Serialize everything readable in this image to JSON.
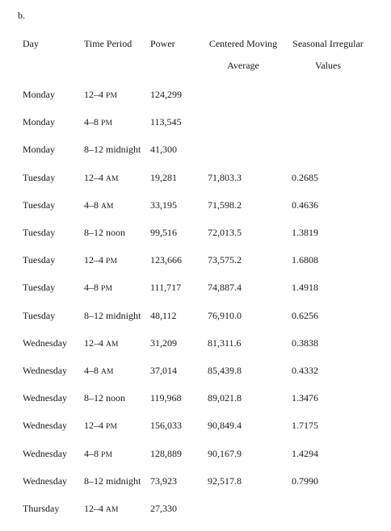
{
  "part_label": "b.",
  "headers": {
    "day": "Day",
    "time_period": "Time Period",
    "power": "Power",
    "cma_line1": "Centered Moving",
    "cma_line2": "Average",
    "siv_line1": "Seasonal Irregular",
    "siv_line2": "Values"
  },
  "rows": [
    {
      "day": "Monday",
      "time": "12–4",
      "ampm": "PM",
      "power": "124,299",
      "cma": "",
      "siv": ""
    },
    {
      "day": "Monday",
      "time": "4–8",
      "ampm": "PM",
      "power": "113,545",
      "cma": "",
      "siv": ""
    },
    {
      "day": "Monday",
      "time": "8–12 midnight",
      "ampm": "",
      "power": "41,300",
      "cma": "",
      "siv": ""
    },
    {
      "day": "Tuesday",
      "time": "12–4",
      "ampm": "AM",
      "power": "19,281",
      "cma": "71,803.3",
      "siv": "0.2685"
    },
    {
      "day": "Tuesday",
      "time": "4–8",
      "ampm": "AM",
      "power": "33,195",
      "cma": "71,598.2",
      "siv": "0.4636"
    },
    {
      "day": "Tuesday",
      "time": "8–12 noon",
      "ampm": "",
      "power": "99,516",
      "cma": "72,013.5",
      "siv": "1.3819"
    },
    {
      "day": "Tuesday",
      "time": "12–4",
      "ampm": "PM",
      "power": "123,666",
      "cma": "73,575.2",
      "siv": "1.6808"
    },
    {
      "day": "Tuesday",
      "time": "4–8",
      "ampm": "PM",
      "power": "111,717",
      "cma": "74,887.4",
      "siv": "1.4918"
    },
    {
      "day": "Tuesday",
      "time": "8–12 midnight",
      "ampm": "",
      "power": "48,112",
      "cma": "76,910.0",
      "siv": "0.6256"
    },
    {
      "day": "Wednesday",
      "time": "12–4",
      "ampm": "AM",
      "power": "31,209",
      "cma": "81,311.6",
      "siv": "0.3838"
    },
    {
      "day": "Wednesday",
      "time": "4–8",
      "ampm": "AM",
      "power": "37,014",
      "cma": "85,439.8",
      "siv": "0.4332"
    },
    {
      "day": "Wednesday",
      "time": "8–12 noon",
      "ampm": "",
      "power": "119,968",
      "cma": "89,021.8",
      "siv": "1.3476"
    },
    {
      "day": "Wednesday",
      "time": "12–4",
      "ampm": "PM",
      "power": "156,033",
      "cma": "90,849.4",
      "siv": "1.7175"
    },
    {
      "day": "Wednesday",
      "time": "4–8",
      "ampm": "PM",
      "power": "128,889",
      "cma": "90,167.9",
      "siv": "1.4294"
    },
    {
      "day": "Wednesday",
      "time": "8–12 midnight",
      "ampm": "",
      "power": "73,923",
      "cma": "92,517.8",
      "siv": "0.7990"
    },
    {
      "day": "Thursday",
      "time": "12–4",
      "ampm": "AM",
      "power": "27,330",
      "cma": "",
      "siv": ""
    }
  ]
}
